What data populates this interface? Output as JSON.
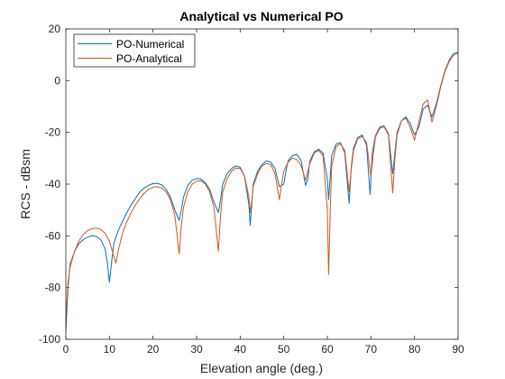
{
  "chart_data": {
    "type": "line",
    "title": "Analytical vs Numerical PO",
    "xlabel": "Elevation angle (deg.)",
    "ylabel": "RCS - dBsm",
    "xlim": [
      0,
      90
    ],
    "ylim": [
      -100,
      20
    ],
    "xticks": [
      0,
      10,
      20,
      30,
      40,
      50,
      60,
      70,
      80,
      90
    ],
    "yticks": [
      -100,
      -80,
      -60,
      -40,
      -20,
      0,
      20
    ],
    "grid": false,
    "legend_position": "top-left",
    "series": [
      {
        "name": "PO-Numerical",
        "color": "#0072BD",
        "points": [
          [
            0,
            -97
          ],
          [
            0.5,
            -80
          ],
          [
            1,
            -71
          ],
          [
            2,
            -66
          ],
          [
            3,
            -63
          ],
          [
            4,
            -61.5
          ],
          [
            5,
            -60.5
          ],
          [
            6,
            -60
          ],
          [
            7,
            -60.2
          ],
          [
            8,
            -61.5
          ],
          [
            9,
            -65
          ],
          [
            9.5,
            -70
          ],
          [
            10,
            -78
          ],
          [
            10.5,
            -70
          ],
          [
            11,
            -63
          ],
          [
            12,
            -58
          ],
          [
            13,
            -54.5
          ],
          [
            14,
            -51
          ],
          [
            15,
            -48
          ],
          [
            16,
            -45.5
          ],
          [
            17,
            -43
          ],
          [
            18,
            -41.5
          ],
          [
            19,
            -40.5
          ],
          [
            20,
            -39.8
          ],
          [
            21,
            -39.7
          ],
          [
            22,
            -40.3
          ],
          [
            23,
            -42
          ],
          [
            24,
            -45
          ],
          [
            25,
            -50
          ],
          [
            26,
            -54
          ],
          [
            26.5,
            -50
          ],
          [
            27,
            -45
          ],
          [
            28,
            -40.5
          ],
          [
            29,
            -38.5
          ],
          [
            30,
            -37.8
          ],
          [
            31,
            -38
          ],
          [
            32,
            -39.5
          ],
          [
            33,
            -42
          ],
          [
            34,
            -47
          ],
          [
            35,
            -51
          ],
          [
            35.5,
            -46
          ],
          [
            36,
            -40
          ],
          [
            37,
            -36
          ],
          [
            38,
            -34
          ],
          [
            39,
            -33
          ],
          [
            40,
            -33.5
          ],
          [
            41,
            -37
          ],
          [
            42,
            -48
          ],
          [
            42.3,
            -56
          ],
          [
            42.7,
            -47
          ],
          [
            43,
            -40
          ],
          [
            44,
            -35
          ],
          [
            45,
            -32.5
          ],
          [
            46,
            -31
          ],
          [
            47,
            -31.5
          ],
          [
            48,
            -34
          ],
          [
            49,
            -41
          ],
          [
            50,
            -40
          ],
          [
            50.5,
            -35
          ],
          [
            51,
            -31
          ],
          [
            52,
            -29
          ],
          [
            53,
            -28.5
          ],
          [
            54,
            -31
          ],
          [
            55,
            -40.5
          ],
          [
            55.5,
            -38
          ],
          [
            56,
            -31
          ],
          [
            57,
            -27.5
          ],
          [
            58,
            -26.5
          ],
          [
            59,
            -28
          ],
          [
            60,
            -38
          ],
          [
            60.3,
            -46
          ],
          [
            60.7,
            -36
          ],
          [
            61,
            -29
          ],
          [
            62,
            -24.5
          ],
          [
            63,
            -24
          ],
          [
            64,
            -28
          ],
          [
            65,
            -47.5
          ],
          [
            65.5,
            -33
          ],
          [
            66,
            -26
          ],
          [
            67,
            -22
          ],
          [
            68,
            -21
          ],
          [
            69,
            -25
          ],
          [
            69.8,
            -44
          ],
          [
            70.3,
            -28
          ],
          [
            71,
            -21.5
          ],
          [
            72,
            -18
          ],
          [
            73,
            -17.5
          ],
          [
            74,
            -20.5
          ],
          [
            75,
            -36
          ],
          [
            75.5,
            -28
          ],
          [
            76,
            -20
          ],
          [
            77,
            -15.5
          ],
          [
            78,
            -14
          ],
          [
            79,
            -16.5
          ],
          [
            80,
            -21
          ],
          [
            81,
            -18
          ],
          [
            82,
            -11
          ],
          [
            83,
            -9.5
          ],
          [
            84,
            -14
          ],
          [
            85,
            -9
          ],
          [
            86,
            -2
          ],
          [
            87,
            4
          ],
          [
            88,
            8
          ],
          [
            89,
            10.5
          ],
          [
            90,
            11
          ]
        ]
      },
      {
        "name": "PO-Analytical",
        "color": "#D95319",
        "points": [
          [
            0,
            -93
          ],
          [
            0.5,
            -78
          ],
          [
            1,
            -72
          ],
          [
            2,
            -66
          ],
          [
            3,
            -62
          ],
          [
            4,
            -59.5
          ],
          [
            5,
            -58
          ],
          [
            6,
            -57.2
          ],
          [
            7,
            -57
          ],
          [
            8,
            -57.5
          ],
          [
            9,
            -59
          ],
          [
            10,
            -62
          ],
          [
            11,
            -68
          ],
          [
            11.5,
            -70.5
          ],
          [
            12,
            -66
          ],
          [
            13,
            -59
          ],
          [
            14,
            -54.5
          ],
          [
            15,
            -51
          ],
          [
            16,
            -48
          ],
          [
            17,
            -45.5
          ],
          [
            18,
            -43.5
          ],
          [
            19,
            -42
          ],
          [
            20,
            -41.2
          ],
          [
            21,
            -41
          ],
          [
            22,
            -41.5
          ],
          [
            23,
            -43
          ],
          [
            24,
            -46
          ],
          [
            25,
            -52
          ],
          [
            26,
            -67
          ],
          [
            26.5,
            -56
          ],
          [
            27,
            -49
          ],
          [
            28,
            -43
          ],
          [
            29,
            -40
          ],
          [
            30,
            -38.8
          ],
          [
            31,
            -38.7
          ],
          [
            32,
            -40
          ],
          [
            33,
            -43
          ],
          [
            34,
            -49
          ],
          [
            35,
            -66
          ],
          [
            35.5,
            -52
          ],
          [
            36,
            -43
          ],
          [
            37,
            -38
          ],
          [
            38,
            -35
          ],
          [
            39,
            -33.8
          ],
          [
            40,
            -34
          ],
          [
            41,
            -37
          ],
          [
            42,
            -45
          ],
          [
            42.3,
            -51
          ],
          [
            42.7,
            -46
          ],
          [
            43,
            -41
          ],
          [
            44,
            -36
          ],
          [
            45,
            -33
          ],
          [
            46,
            -32
          ],
          [
            47,
            -32.5
          ],
          [
            48,
            -36
          ],
          [
            49,
            -46
          ],
          [
            49.5,
            -40
          ],
          [
            50,
            -35
          ],
          [
            51,
            -31.5
          ],
          [
            52,
            -30
          ],
          [
            53,
            -30.5
          ],
          [
            54,
            -33
          ],
          [
            55,
            -38.5
          ],
          [
            56,
            -32
          ],
          [
            57,
            -28
          ],
          [
            58,
            -27
          ],
          [
            59,
            -29
          ],
          [
            60,
            -50
          ],
          [
            60.3,
            -75
          ],
          [
            60.7,
            -48
          ],
          [
            61,
            -33
          ],
          [
            62,
            -25.5
          ],
          [
            63,
            -24.5
          ],
          [
            64,
            -27
          ],
          [
            65,
            -43
          ],
          [
            65.5,
            -34
          ],
          [
            66,
            -27
          ],
          [
            67,
            -22.5
          ],
          [
            68,
            -21.5
          ],
          [
            69,
            -24
          ],
          [
            70,
            -37
          ],
          [
            70.5,
            -29
          ],
          [
            71,
            -22
          ],
          [
            72,
            -18.5
          ],
          [
            73,
            -17.8
          ],
          [
            74,
            -21
          ],
          [
            75,
            -43.5
          ],
          [
            75.5,
            -30
          ],
          [
            76,
            -21
          ],
          [
            77,
            -15.5
          ],
          [
            78,
            -14.5
          ],
          [
            79,
            -18
          ],
          [
            80,
            -23
          ],
          [
            81,
            -16
          ],
          [
            82,
            -9
          ],
          [
            83,
            -7.5
          ],
          [
            84,
            -16
          ],
          [
            85,
            -10
          ],
          [
            86,
            -2.5
          ],
          [
            87,
            3.5
          ],
          [
            88,
            7.5
          ],
          [
            89,
            10
          ],
          [
            90,
            10.5
          ]
        ]
      }
    ]
  }
}
